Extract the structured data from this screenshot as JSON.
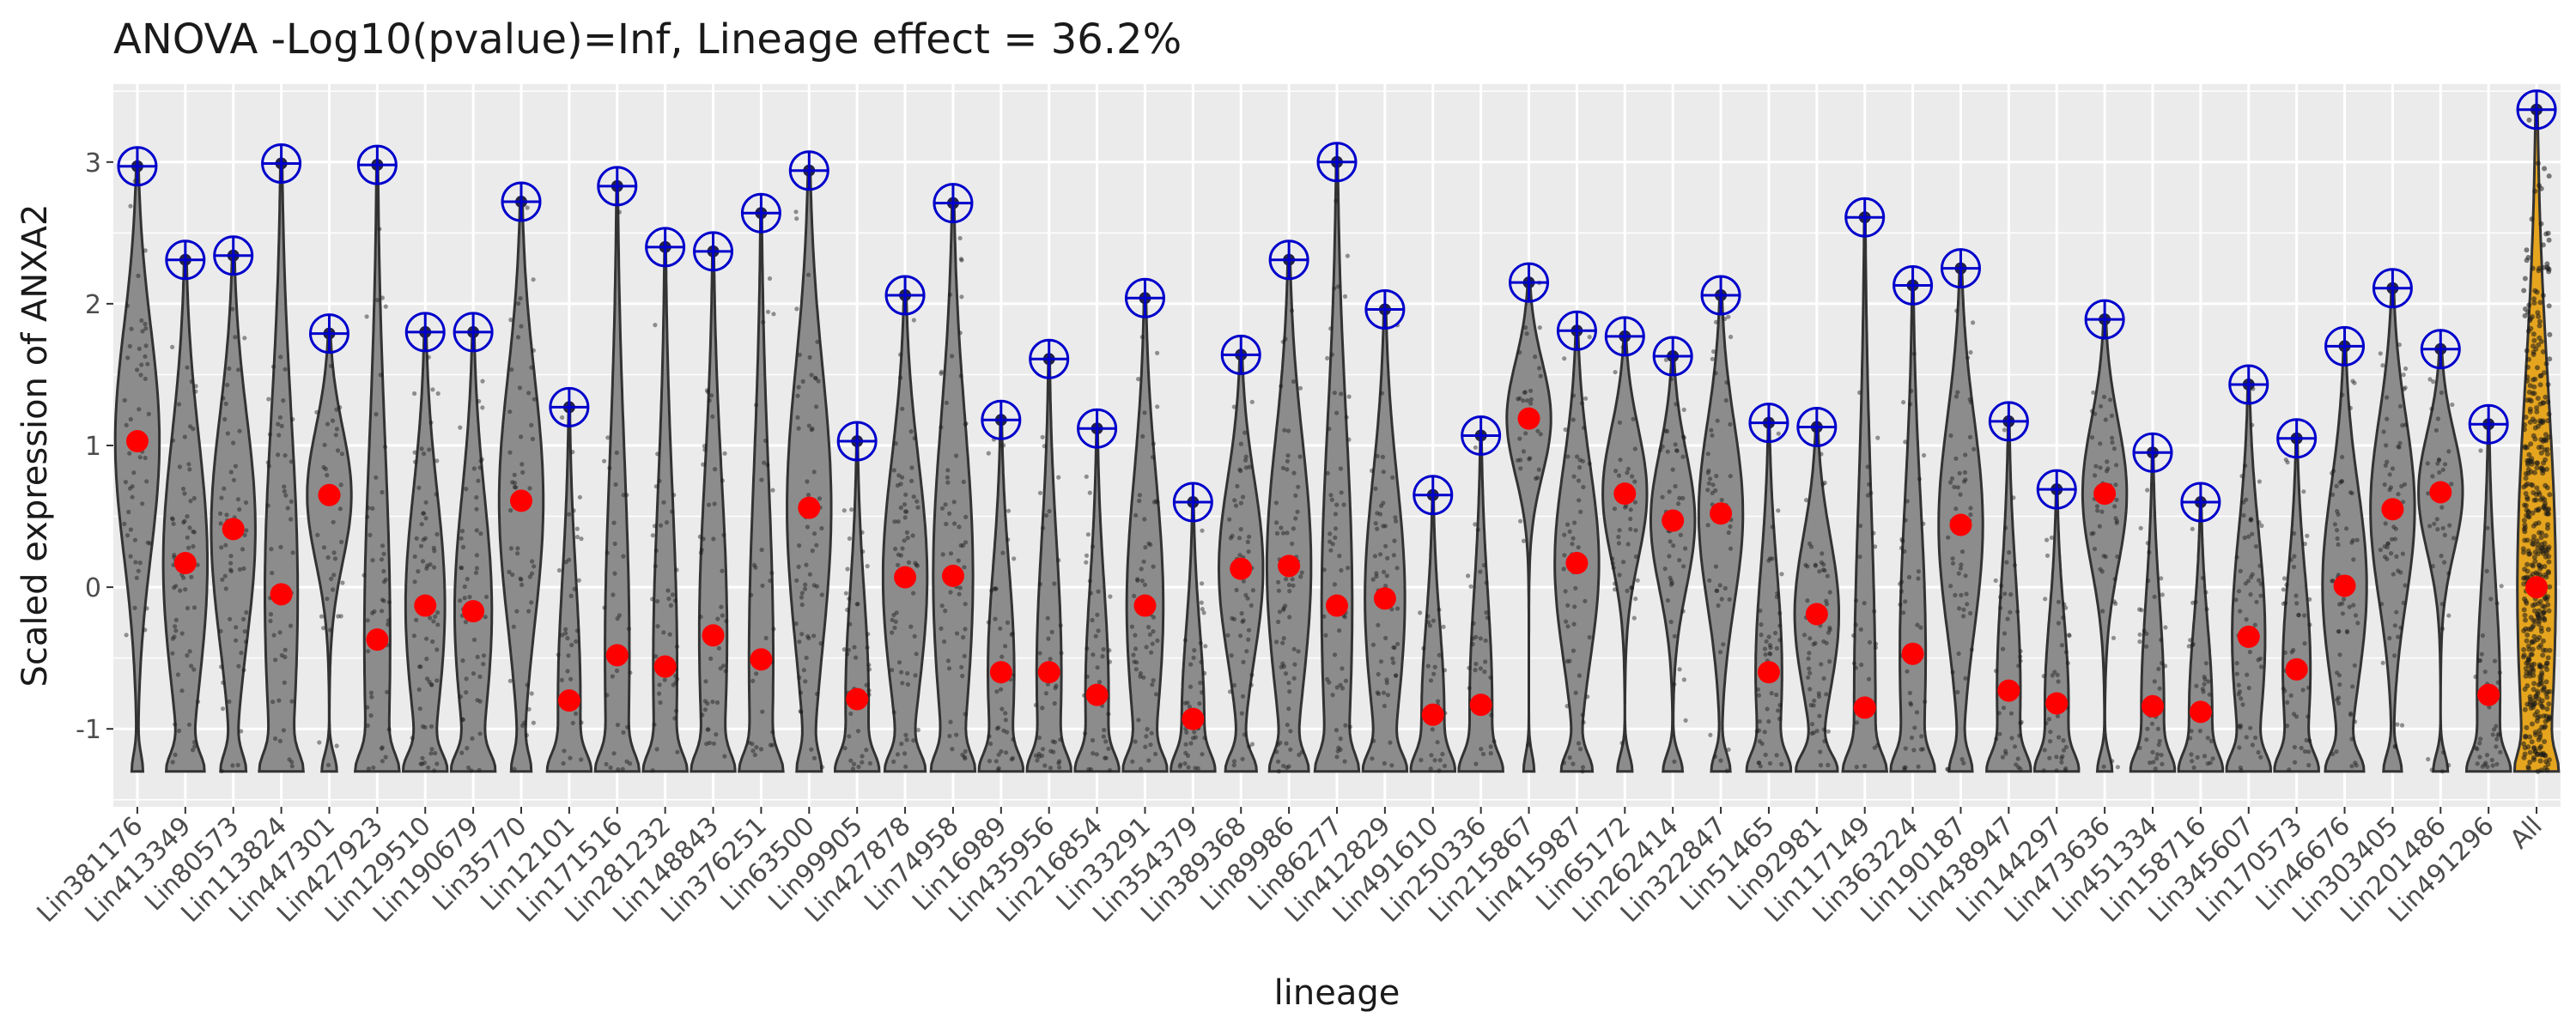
{
  "chart_data": {
    "type": "violin",
    "title": "ANOVA -Log10(pvalue)=Inf, Lineage effect = 36.2%",
    "xlabel": "lineage",
    "ylabel": "Scaled expression of ANXA2",
    "ylim": [
      -1.55,
      3.55
    ],
    "yticks": [
      -1,
      0,
      1,
      2,
      3
    ],
    "grid": true,
    "colors": {
      "panel": "#ebebeb",
      "violin": "#8c8c8c",
      "violin_all": "#e6a51e",
      "mean": "#ff0000",
      "max_marker": "#0000cc",
      "points": "#1a1a1a"
    },
    "categories": [
      "Lin381176",
      "Lin413349",
      "Lin80573",
      "Lin113824",
      "Lin447301",
      "Lin427923",
      "Lin129510",
      "Lin190679",
      "Lin35770",
      "Lin12101",
      "Lin171516",
      "Lin281232",
      "Lin148843",
      "Lin376251",
      "Lin63500",
      "Lin99905",
      "Lin427878",
      "Lin74958",
      "Lin16989",
      "Lin435956",
      "Lin216854",
      "Lin33291",
      "Lin354379",
      "Lin389368",
      "Lin89986",
      "Lin86277",
      "Lin412829",
      "Lin491610",
      "Lin250336",
      "Lin215867",
      "Lin415987",
      "Lin65172",
      "Lin262414",
      "Lin322847",
      "Lin51465",
      "Lin92981",
      "Lin117149",
      "Lin363224",
      "Lin190187",
      "Lin438947",
      "Lin144297",
      "Lin473636",
      "Lin451334",
      "Lin158716",
      "Lin345607",
      "Lin170573",
      "Lin46676",
      "Lin303405",
      "Lin201486",
      "Lin491296",
      "All"
    ],
    "mean": [
      1.03,
      0.17,
      0.41,
      -0.05,
      0.65,
      -0.37,
      -0.13,
      -0.17,
      0.61,
      -0.8,
      -0.48,
      -0.56,
      -0.34,
      -0.51,
      0.56,
      -0.79,
      0.07,
      0.08,
      -0.6,
      -0.6,
      -0.76,
      -0.13,
      -0.93,
      0.13,
      0.15,
      -0.13,
      -0.08,
      -0.9,
      -0.83,
      1.19,
      0.17,
      0.66,
      0.47,
      0.52,
      -0.6,
      -0.19,
      -0.85,
      -0.47,
      0.44,
      -0.73,
      -0.82,
      0.66,
      -0.84,
      -0.88,
      -0.35,
      -0.58,
      0.01,
      0.55,
      0.67,
      -0.76,
      0.0
    ],
    "max": [
      2.97,
      2.31,
      2.34,
      2.99,
      1.79,
      2.98,
      1.8,
      1.8,
      2.72,
      1.27,
      2.83,
      2.4,
      2.37,
      2.64,
      2.94,
      1.03,
      2.06,
      2.71,
      1.18,
      1.61,
      1.12,
      2.04,
      0.6,
      1.64,
      2.31,
      3.0,
      1.96,
      0.65,
      1.07,
      2.15,
      1.81,
      1.77,
      1.63,
      2.06,
      1.16,
      1.13,
      2.61,
      2.13,
      2.25,
      1.17,
      0.69,
      1.89,
      0.95,
      0.6,
      1.43,
      1.05,
      1.7,
      2.11,
      1.68,
      1.15,
      3.37
    ],
    "min": -1.3
  }
}
